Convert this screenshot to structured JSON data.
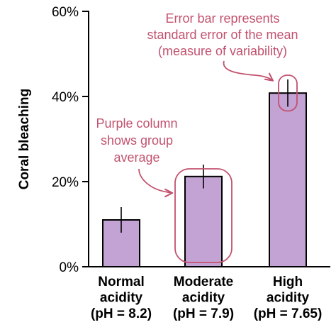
{
  "chart_data": {
    "type": "bar",
    "title": "",
    "xlabel": "",
    "ylabel": "Coral bleaching",
    "ylim": [
      0,
      60
    ],
    "yticks": [
      {
        "value": 0,
        "label": "0%"
      },
      {
        "value": 20,
        "label": "20%"
      },
      {
        "value": 40,
        "label": "40%"
      },
      {
        "value": 60,
        "label": "60%"
      }
    ],
    "grid": false,
    "legend": "none",
    "categories": [
      [
        "Normal",
        "acidity",
        "(pH = 8.2)"
      ],
      [
        "Moderate",
        "acidity",
        "(pH = 7.9)"
      ],
      [
        "High",
        "acidity",
        "(pH = 7.65)"
      ]
    ],
    "values": [
      11,
      21.2,
      40.8
    ],
    "error": [
      3,
      2.8,
      3.2
    ],
    "colors": {
      "bar_fill": "#c3a3d3",
      "bar_stroke": "#000000",
      "annotation": "#c2526e"
    },
    "annotations": [
      {
        "lines": [
          "Error bar represents",
          "standard error of the mean",
          "(measure of variability)"
        ],
        "target_category": 2,
        "target": "error-bar"
      },
      {
        "lines": [
          "Purple column",
          "shows group",
          "average"
        ],
        "target_category": 1,
        "target": "bar"
      }
    ]
  }
}
